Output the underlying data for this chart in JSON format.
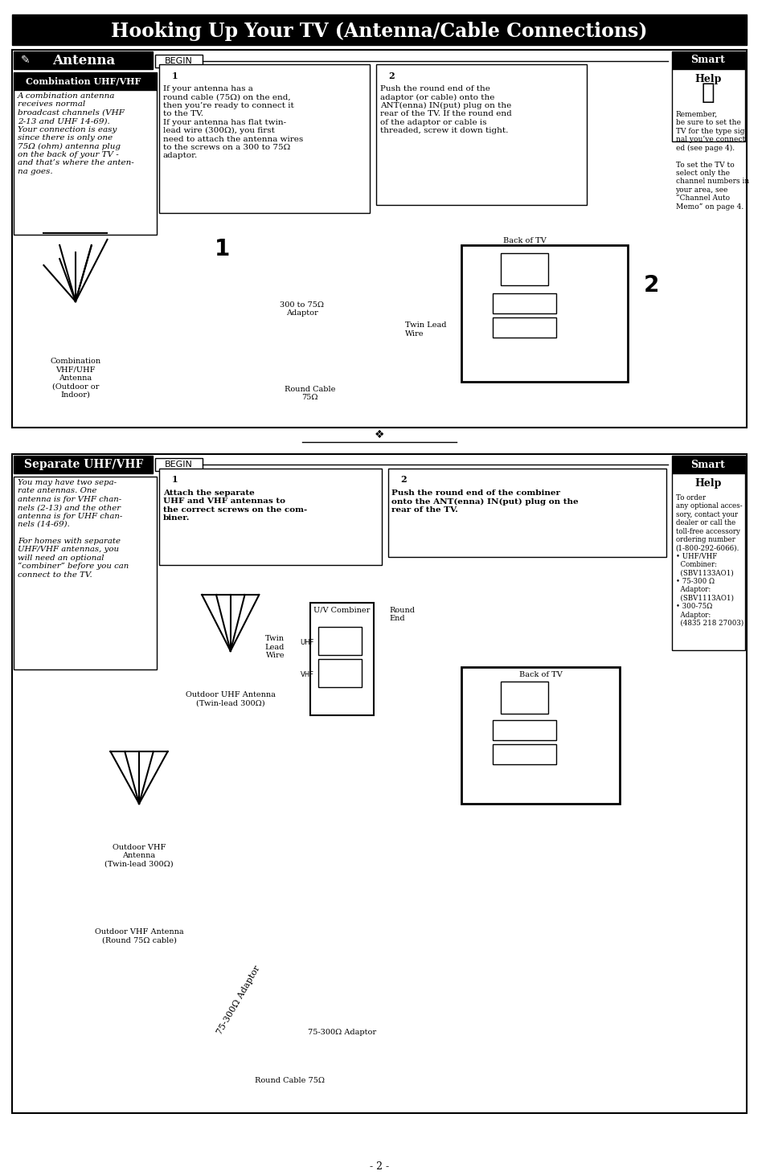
{
  "page_bg": "#ffffff",
  "outer_margin_color": "#f0f0f0",
  "title_text": "Hooking Up Your TV (Antenna/Cable Connections)",
  "title_bg": "#000000",
  "title_color": "#ffffff",
  "title_fontsize": 18,
  "page_number": "- 2 -",
  "section1_header": "Antenna",
  "section1_header_bg": "#000000",
  "section1_header_color": "#ffffff",
  "begin_label": "BEGIN",
  "smart_help_label": "Smart\nHelp",
  "combo_uhf_vhf_title": "Combination UHF/VHF",
  "combo_uhf_vhf_text": "A combination antenna\nreceives normal\nbroadcast channels (VHF\n2-13 and UHF 14-69).\nYour connection is easy\nsince there is only one\n75Ω (ohm) antenna plug\non the back of your TV -\nand that’s where the anten-\nna goes.",
  "step1_text": "If your antenna has a\nround cable (75Ω) on the end,\nthen you’re ready to connect it\nto the TV.\nIf your antenna has flat twin-\nlead wire (300Ω), you first\nneed to attach the antenna wires\nto the screws on a 300 to 75Ω\nadaptor.",
  "step2_text": "Push the round end of the\nadaptor (or cable) onto the\nANT(enna) IN(put) plug on the\nrear of the TV. If the round end\nof the adaptor or cable is\nthreaded, screw it down tight.",
  "smart_help1_text": "Remember,\nbe sure to set the\nTV for the type sig-\nnal you’ve connect-\ned (see page 4).\n\nTo set the TV to\nselect only the\nchannel numbers in\nyour area, see\n“Channel Auto\nMemo” on page 4.",
  "label_300_75": "300 to 75Ω\nAdaptor",
  "label_back_tv": "Back of TV",
  "label_twin_lead": "Twin Lead\nWire",
  "label_round_cable": "Round Cable\n75Ω",
  "label_combo_antenna": "Combination\nVHF/UHF\nAntenna\n(Outdoor or\nIndoor)",
  "section2_header": "Separate UHF/VHF",
  "section2_header_bg": "#000000",
  "section2_header_color": "#ffffff",
  "section2_step1_text": "Attach the separate\nUHF and VHF antennas to\nthe correct screws on the com-\nbiner.",
  "section2_step2_text": "Push the round end of the combiner\nonto the ANT(enna) IN(put) plug on the\nrear of the TV.",
  "section2_body_text": "You may have two sepa-\nrate antennas. One\nantenna is for VHF chan-\nnels (2-13) and the other\nantenna is for UHF chan-\nnels (14-69).\n\nFor homes with separate\nUHF/VHF antennas, you\nwill need an optional\n“combiner” before you can\nconnect to the TV.",
  "smart_help2_text": "To order\nany optional acces-\nsory, contact your\ndealer or call the\ntoll-free accessory\nordering number\n(1-800-292-6066).\n• UHF/VHF\n  Combiner:\n  (SBV1133AO1)\n• 75-300 Ω\n  Adaptor:\n  (SBV1113AO1)\n• 300-75Ω\n  Adaptor:\n  (4835 218 27003)",
  "label_uhf_antenna": "Outdoor UHF Antenna\n(Twin-lead 300Ω)",
  "label_vhf_antenna": "Outdoor VHF\nAntenna\n(Twin-lead 300Ω)",
  "label_vhf_round": "Outdoor VHF Antenna\n(Round 75Ω cable)",
  "label_uv_combiner": "U/V Combiner",
  "label_twin_lead2": "Twin\nLead\nWire",
  "label_round_end": "Round\nEnd",
  "label_75_300_adaptor": "75-300Ω Adaptor",
  "label_round_cable2": "Round Cable 75Ω",
  "label_back_tv2": "Back of TV"
}
